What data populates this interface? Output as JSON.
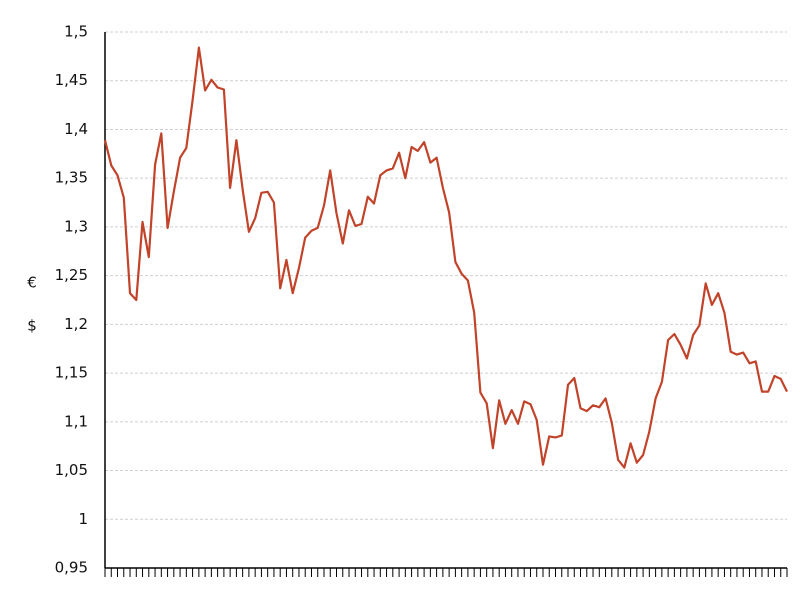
{
  "chart_data": {
    "type": "line",
    "y_label": [
      "€",
      "$"
    ],
    "values": [
      1.389,
      1.363,
      1.353,
      1.33,
      1.232,
      1.225,
      1.305,
      1.269,
      1.364,
      1.396,
      1.299,
      1.336,
      1.371,
      1.381,
      1.43,
      1.484,
      1.44,
      1.451,
      1.443,
      1.441,
      1.34,
      1.389,
      1.338,
      1.295,
      1.309,
      1.335,
      1.336,
      1.325,
      1.237,
      1.266,
      1.232,
      1.258,
      1.289,
      1.296,
      1.299,
      1.322,
      1.358,
      1.314,
      1.283,
      1.317,
      1.301,
      1.303,
      1.331,
      1.324,
      1.353,
      1.358,
      1.36,
      1.376,
      1.35,
      1.382,
      1.378,
      1.387,
      1.366,
      1.371,
      1.34,
      1.315,
      1.264,
      1.252,
      1.245,
      1.212,
      1.13,
      1.119,
      1.073,
      1.122,
      1.098,
      1.112,
      1.098,
      1.121,
      1.118,
      1.102,
      1.056,
      1.085,
      1.084,
      1.086,
      1.138,
      1.145,
      1.114,
      1.111,
      1.117,
      1.115,
      1.124,
      1.099,
      1.061,
      1.053,
      1.078,
      1.058,
      1.066,
      1.09,
      1.124,
      1.141,
      1.184,
      1.19,
      1.179,
      1.165,
      1.189,
      1.199,
      1.242,
      1.22,
      1.232,
      1.212,
      1.172,
      1.169,
      1.171,
      1.16,
      1.162,
      1.131,
      1.131,
      1.147,
      1.144,
      1.131
    ],
    "color": "#c1432a",
    "ylim": [
      0.95,
      1.5
    ],
    "yticks": [
      {
        "value": 0.95,
        "label": "0,95"
      },
      1,
      {
        "value": 1.05,
        "label": "1,05"
      },
      {
        "value": 1.1,
        "label": "1,1"
      },
      {
        "value": 1.15,
        "label": "1,15"
      },
      {
        "value": 1.2,
        "label": "1,2"
      },
      {
        "value": 1.25,
        "label": "1,25"
      },
      {
        "value": 1.3,
        "label": "1,3"
      },
      {
        "value": 1.35,
        "label": "1,35"
      },
      {
        "value": 1.4,
        "label": "1,4"
      },
      {
        "value": 1.45,
        "label": "1,45"
      },
      {
        "value": 1.5,
        "label": "1,5"
      }
    ],
    "grid": true
  }
}
